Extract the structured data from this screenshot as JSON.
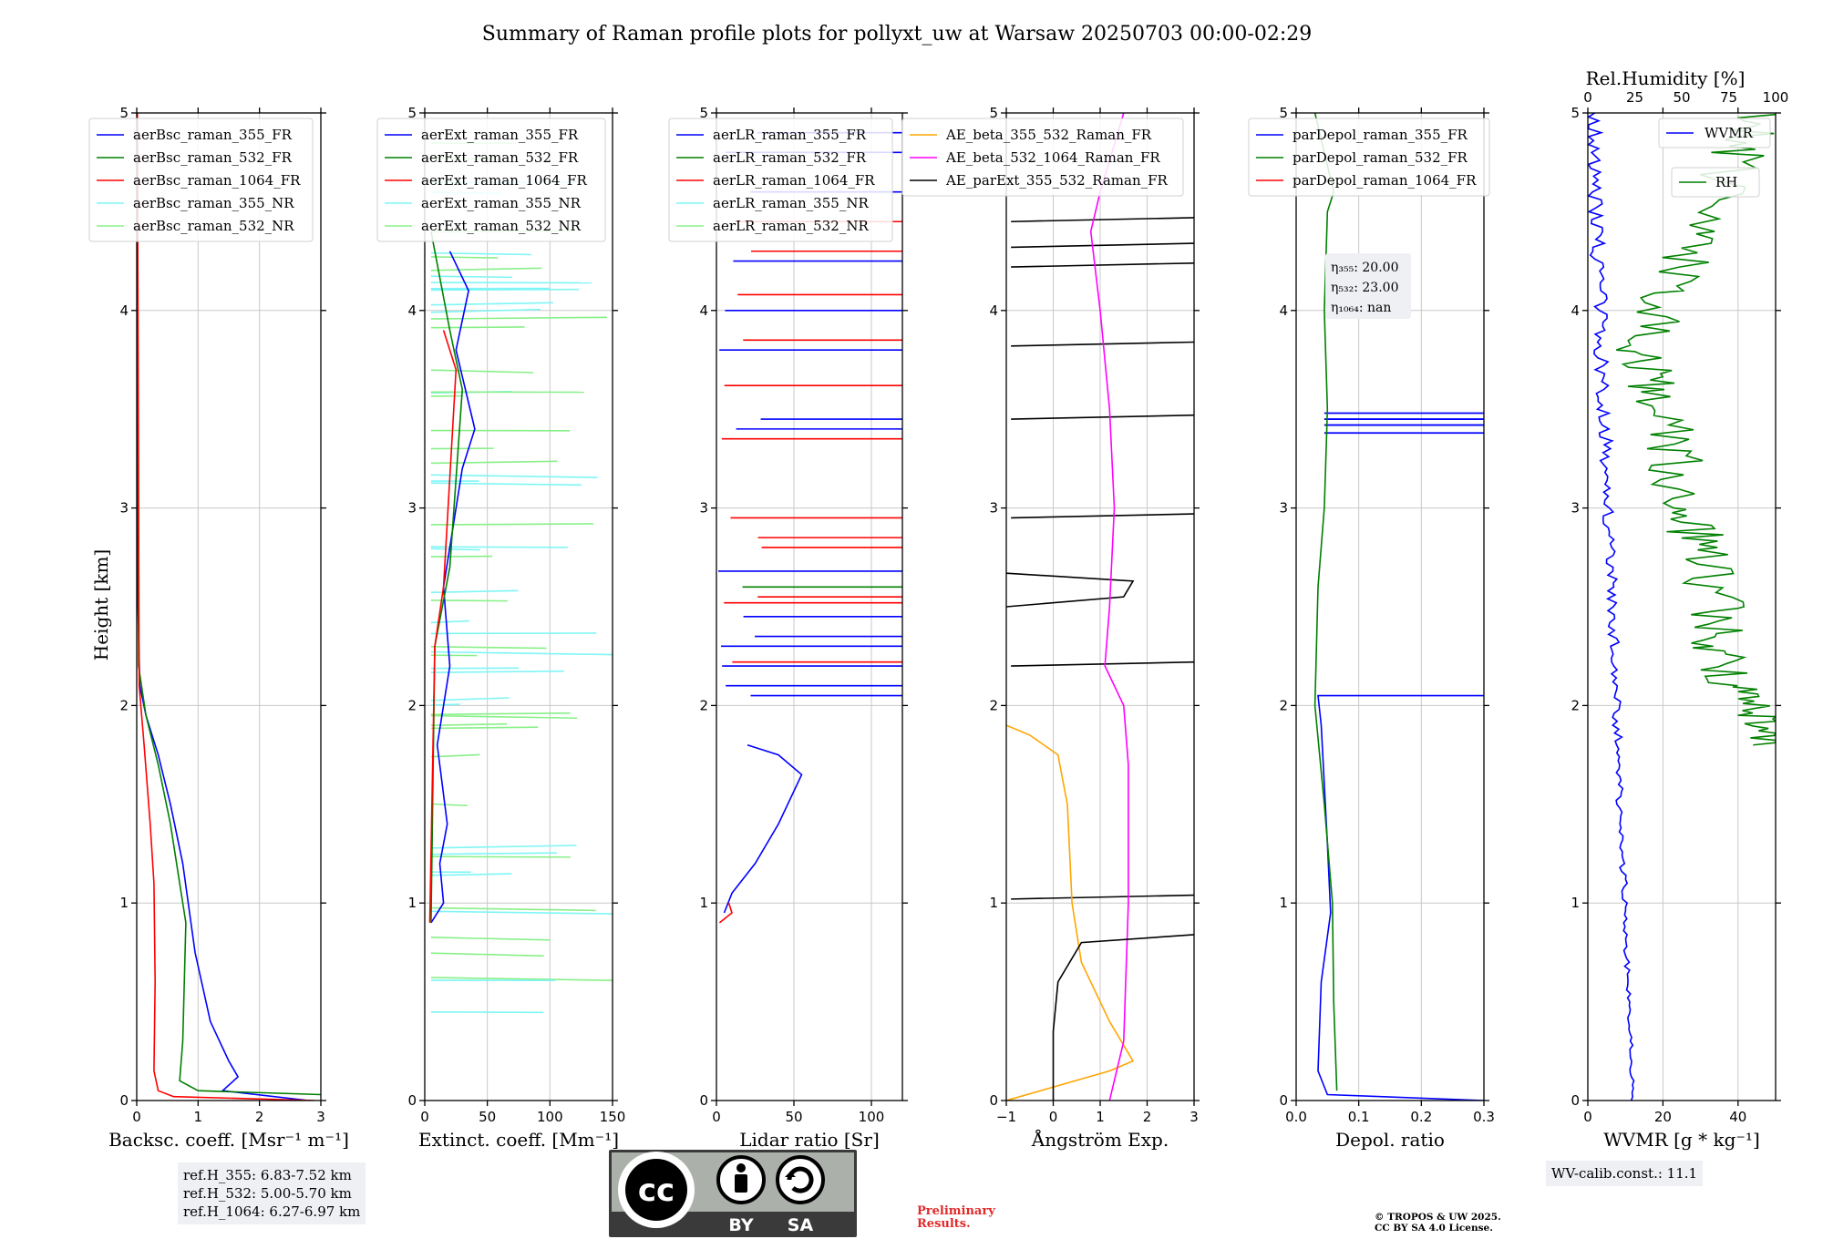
{
  "title": "Summary of Raman profile plots for pollyxt_uw at Warsaw 20250703 00:00-02:29",
  "y_label": "Height [km]",
  "y_ticks": [
    "0",
    "1",
    "2",
    "3",
    "4",
    "5"
  ],
  "panels": {
    "bsc": {
      "xlabel": "Backsc. coeff. [Msr⁻¹ m⁻¹]",
      "xticks": [
        "0",
        "1",
        "2",
        "3"
      ],
      "legend": [
        "aerBsc_raman_355_FR",
        "aerBsc_raman_532_FR",
        "aerBsc_raman_1064_FR",
        "aerBsc_raman_355_NR",
        "aerBsc_raman_532_NR"
      ]
    },
    "ext": {
      "xlabel": "Extinct. coeff. [Mm⁻¹]",
      "xticks": [
        "0",
        "50",
        "100",
        "150"
      ],
      "legend": [
        "aerExt_raman_355_FR",
        "aerExt_raman_532_FR",
        "aerExt_raman_1064_FR",
        "aerExt_raman_355_NR",
        "aerExt_raman_532_NR"
      ]
    },
    "lr": {
      "xlabel": "Lidar ratio [Sr]",
      "xticks": [
        "0",
        "50",
        "100"
      ],
      "legend": [
        "aerLR_raman_355_FR",
        "aerLR_raman_532_FR",
        "aerLR_raman_1064_FR",
        "aerLR_raman_355_NR",
        "aerLR_raman_532_NR"
      ]
    },
    "ae": {
      "xlabel": "Ångström Exp.",
      "xticks": [
        "−1",
        "0",
        "1",
        "2",
        "3"
      ],
      "legend": [
        "AE_beta_355_532_Raman_FR",
        "AE_beta_532_1064_Raman_FR",
        "AE_parExt_355_532_Raman_FR"
      ]
    },
    "depol": {
      "xlabel": "Depol. ratio",
      "xticks": [
        "0.0",
        "0.1",
        "0.2",
        "0.3"
      ],
      "legend": [
        "parDepol_raman_355_FR",
        "parDepol_raman_532_FR",
        "parDepol_raman_1064_FR"
      ],
      "eta": [
        "η₃₅₅: 20.00",
        "η₅₃₂: 23.00",
        "η₁₀₆₄: nan"
      ]
    },
    "wv": {
      "xlabel": "WVMR [g * kg⁻¹]",
      "xticks": [
        "0",
        "20",
        "40"
      ],
      "top_label": "Rel.Humidity [%]",
      "top_ticks": [
        "0",
        "25",
        "50",
        "75",
        "100"
      ],
      "legend_wvmr": "WVMR",
      "legend_rh": "RH"
    }
  },
  "ref_heights": [
    "ref.H_355: 6.83-7.52 km",
    "ref.H_532: 5.00-5.70 km",
    "ref.H_1064: 6.27-6.97 km"
  ],
  "wv_calib": "WV-calib.const.: 11.1",
  "preliminary": [
    "Preliminary",
    "Results."
  ],
  "copyright": [
    "© TROPOS & UW 2025.",
    "CC BY SA 4.0 License."
  ],
  "license_badge": [
    "cc",
    "BY",
    "SA"
  ],
  "colors": {
    "c355": "#0000ff",
    "c532": "#008000",
    "c1064": "#ff0000",
    "c355nr": "#7ff5f5",
    "c532nr": "#88f088",
    "orange": "#ffa500",
    "magenta": "#ff00ff",
    "black": "#000000"
  },
  "chart_data": {
    "type": "line",
    "y_axis": {
      "label": "Height [km]",
      "range": [
        0,
        5
      ]
    },
    "panels": [
      {
        "name": "backscatter",
        "xlim": [
          0,
          3
        ],
        "series": [
          {
            "name": "aerBsc_raman_355_FR",
            "points": [
              [
                2.8,
                0
              ],
              [
                1.4,
                0.05
              ],
              [
                1.65,
                0.12
              ],
              [
                1.5,
                0.2
              ],
              [
                1.2,
                0.4
              ],
              [
                0.95,
                0.75
              ],
              [
                0.75,
                1.2
              ],
              [
                0.55,
                1.5
              ],
              [
                0.35,
                1.75
              ],
              [
                0.15,
                1.95
              ],
              [
                0.05,
                2.1
              ],
              [
                0.02,
                2.5
              ],
              [
                0.01,
                5
              ]
            ]
          },
          {
            "name": "aerBsc_raman_532_FR",
            "points": [
              [
                3.0,
                0.03
              ],
              [
                1.0,
                0.05
              ],
              [
                0.7,
                0.1
              ],
              [
                0.75,
                0.3
              ],
              [
                0.8,
                0.9
              ],
              [
                0.7,
                1.1
              ],
              [
                0.55,
                1.4
              ],
              [
                0.35,
                1.7
              ],
              [
                0.15,
                1.95
              ],
              [
                0.03,
                2.2
              ],
              [
                0.01,
                5
              ]
            ]
          },
          {
            "name": "aerBsc_raman_1064_FR",
            "points": [
              [
                2.9,
                0
              ],
              [
                0.6,
                0.02
              ],
              [
                0.35,
                0.05
              ],
              [
                0.28,
                0.15
              ],
              [
                0.3,
                0.6
              ],
              [
                0.28,
                1.1
              ],
              [
                0.22,
                1.4
              ],
              [
                0.12,
                1.8
              ],
              [
                0.04,
                2.1
              ],
              [
                0.01,
                5
              ]
            ]
          }
        ]
      },
      {
        "name": "extinction",
        "xlim": [
          0,
          150
        ],
        "series": [
          {
            "name": "aerExt_raman_355_FR",
            "points": [
              [
                5,
                0.9
              ],
              [
                15,
                1.0
              ],
              [
                12,
                1.2
              ],
              [
                18,
                1.4
              ],
              [
                14,
                1.6
              ],
              [
                10,
                1.8
              ],
              [
                20,
                2.2
              ],
              [
                15,
                2.6
              ],
              [
                30,
                3.2
              ],
              [
                40,
                3.4
              ],
              [
                25,
                3.8
              ],
              [
                35,
                4.1
              ],
              [
                20,
                4.3
              ]
            ]
          },
          {
            "name": "aerExt_raman_532_FR",
            "points": [
              [
                5,
                0.9
              ],
              [
                8,
                2.3
              ],
              [
                20,
                2.7
              ],
              [
                30,
                3.6
              ],
              [
                20,
                3.9
              ],
              [
                5,
                4.4
              ]
            ]
          },
          {
            "name": "aerExt_raman_1064_FR",
            "points": [
              [
                4,
                0.9
              ],
              [
                8,
                2.3
              ],
              [
                15,
                2.6
              ],
              [
                25,
                3.7
              ],
              [
                15,
                3.9
              ]
            ]
          }
        ]
      },
      {
        "name": "lidar_ratio",
        "xlim": [
          0,
          120
        ],
        "series": [
          {
            "name": "aerLR_raman_355_FR",
            "points": [
              [
                5,
                0.95
              ],
              [
                10,
                1.05
              ],
              [
                25,
                1.2
              ],
              [
                40,
                1.4
              ],
              [
                55,
                1.65
              ],
              [
                40,
                1.75
              ],
              [
                20,
                1.8
              ]
            ]
          },
          {
            "name": "aerLR_raman_1064_FR",
            "points": [
              [
                2,
                0.9
              ],
              [
                10,
                0.95
              ],
              [
                8,
                1.0
              ]
            ]
          }
        ]
      },
      {
        "name": "angstrom",
        "xlim": [
          -1,
          3
        ],
        "series": [
          {
            "name": "AE_beta_355_532_Raman_FR",
            "points": [
              [
                -1,
                0
              ],
              [
                1.2,
                0.15
              ],
              [
                1.7,
                0.2
              ],
              [
                1.2,
                0.4
              ],
              [
                0.6,
                0.7
              ],
              [
                0.4,
                1.0
              ],
              [
                0.3,
                1.5
              ],
              [
                0.1,
                1.75
              ],
              [
                -0.5,
                1.85
              ],
              [
                -1,
                1.9
              ]
            ]
          },
          {
            "name": "AE_beta_532_1064_Raman_FR",
            "points": [
              [
                1.2,
                0
              ],
              [
                1.5,
                0.3
              ],
              [
                1.6,
                1.0
              ],
              [
                1.6,
                1.7
              ],
              [
                1.5,
                2.0
              ],
              [
                1.1,
                2.2
              ],
              [
                1.2,
                2.5
              ],
              [
                1.3,
                3.0
              ],
              [
                1.2,
                3.5
              ],
              [
                1.0,
                4.0
              ],
              [
                0.8,
                4.4
              ],
              [
                1.0,
                4.6
              ],
              [
                1.5,
                5.0
              ]
            ]
          },
          {
            "name": "AE_parExt_355_532_Raman_FR",
            "points": [
              [
                0,
                0
              ],
              [
                0,
                0.35
              ],
              [
                0.1,
                0.6
              ],
              [
                0.6,
                0.8
              ],
              [
                3,
                0.84
              ]
            ]
          }
        ]
      },
      {
        "name": "depol",
        "xlim": [
          0,
          0.3
        ],
        "series": [
          {
            "name": "parDepol_raman_355_FR",
            "points": [
              [
                0.3,
                0
              ],
              [
                0.05,
                0.03
              ],
              [
                0.035,
                0.15
              ],
              [
                0.04,
                0.6
              ],
              [
                0.055,
                0.95
              ],
              [
                0.05,
                1.3
              ],
              [
                0.04,
                1.9
              ],
              [
                0.035,
                2.05
              ],
              [
                0.3,
                2.05
              ]
            ]
          },
          {
            "name": "parDepol_raman_532_FR",
            "points": [
              [
                0.065,
                0.05
              ],
              [
                0.06,
                0.5
              ],
              [
                0.058,
                1.0
              ],
              [
                0.045,
                1.5
              ],
              [
                0.03,
                2.0
              ],
              [
                0.035,
                2.6
              ],
              [
                0.045,
                3.0
              ],
              [
                0.05,
                3.5
              ],
              [
                0.045,
                4.0
              ],
              [
                0.05,
                4.5
              ],
              [
                0.06,
                4.6
              ],
              [
                0.03,
                5.0
              ]
            ]
          }
        ]
      },
      {
        "name": "water_vapor",
        "xlim": [
          0,
          50
        ],
        "top_axis": {
          "label": "Rel.Humidity [%]",
          "range": [
            0,
            100
          ]
        },
        "series": [
          {
            "name": "WVMR",
            "points": [
              [
                12,
                0
              ],
              [
                10,
                0.5
              ],
              [
                9,
                1.0
              ],
              [
                8,
                1.5
              ],
              [
                6,
                2.0
              ],
              [
                5,
                2.5
              ],
              [
                4,
                3.0
              ],
              [
                3,
                3.5
              ],
              [
                2,
                4.0
              ],
              [
                1,
                4.5
              ],
              [
                0.5,
                5.0
              ]
            ]
          },
          {
            "name": "RH",
            "axis": "top",
            "points": [
              [
                100,
                1.8
              ],
              [
                92,
                1.95
              ],
              [
                75,
                2.1
              ],
              [
                68,
                2.3
              ],
              [
                70,
                2.5
              ],
              [
                60,
                2.8
              ],
              [
                52,
                3.0
              ],
              [
                45,
                3.3
              ],
              [
                35,
                3.6
              ],
              [
                30,
                3.8
              ],
              [
                40,
                4.1
              ],
              [
                60,
                4.4
              ],
              [
                80,
                4.8
              ],
              [
                95,
                5.0
              ]
            ]
          }
        ]
      }
    ]
  }
}
